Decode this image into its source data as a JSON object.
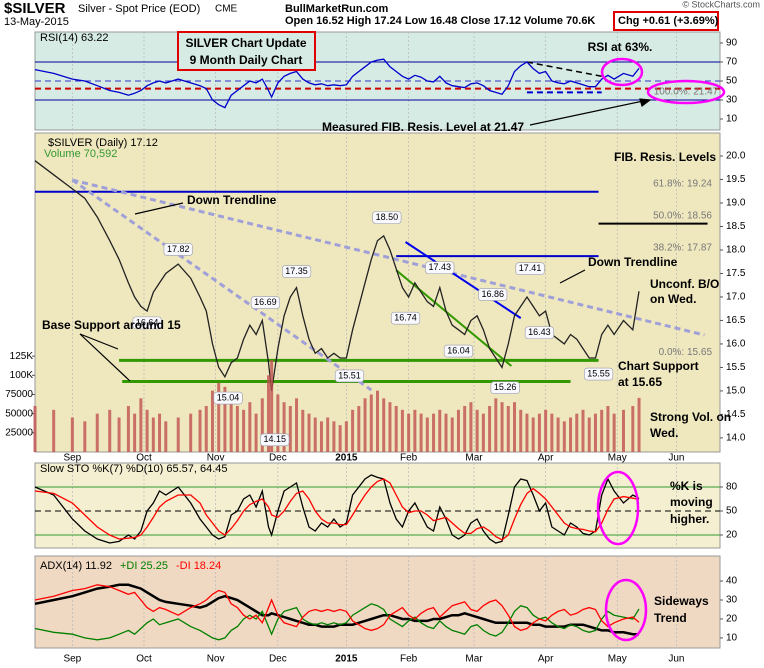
{
  "chart_data": {
    "type": "line",
    "title": "$SILVER",
    "subtitle": "Silver - Spot Price (EOD)",
    "exchange": "CME",
    "date": "13-May-2015",
    "watermark": "BullMarketRun.com",
    "source": "© StockCharts.com",
    "quote": "Open 16.52  High 17.24  Low 16.48  Close 17.12  Volume 70.6K",
    "change": "Chg +0.61 (+3.69%)",
    "xlim": [
      0,
      220
    ],
    "xticks": [
      {
        "value": 12,
        "label": "Sep"
      },
      {
        "value": 35,
        "label": "Oct"
      },
      {
        "value": 58,
        "label": "Nov"
      },
      {
        "value": 78,
        "label": "Dec"
      },
      {
        "value": 100,
        "label": "2015"
      },
      {
        "value": 120,
        "label": "Feb"
      },
      {
        "value": 141,
        "label": "Mar"
      },
      {
        "value": 164,
        "label": "Apr"
      },
      {
        "value": 187,
        "label": "May"
      },
      {
        "value": 206,
        "label": "Jun"
      }
    ],
    "x": [
      0,
      6,
      12,
      16,
      20,
      24,
      27,
      30,
      32,
      34,
      36,
      38,
      40,
      42,
      46,
      50,
      53,
      55,
      57,
      59,
      61,
      63,
      65,
      67,
      69,
      71,
      73,
      75,
      76,
      78,
      80,
      82,
      84,
      86,
      88,
      90,
      92,
      94,
      96,
      98,
      100,
      102,
      104,
      106,
      108,
      110,
      112,
      114,
      116,
      118,
      120,
      122,
      124,
      126,
      128,
      130,
      132,
      134,
      136,
      138,
      140,
      142,
      144,
      146,
      148,
      150,
      152,
      154,
      156,
      158,
      160,
      162,
      164,
      166,
      168,
      170,
      172,
      174,
      176,
      178,
      180,
      182,
      184,
      186,
      189,
      192,
      194
    ],
    "panels": [
      {
        "id": "rsi",
        "ylim": [
          -1.6,
          101.6
        ],
        "yticks": [
          10,
          30,
          50,
          70,
          90
        ],
        "hlines": [
          {
            "value": 70,
            "color": "#000099"
          },
          {
            "value": 30,
            "color": "#000099"
          },
          {
            "value": 50,
            "color": "#3333cc",
            "dash": true
          },
          {
            "value": 42,
            "color": "#cc0000",
            "dash": true,
            "width": 2
          },
          {
            "value": 38,
            "from": 158,
            "to": 182,
            "color": "#0000cc",
            "dash": true,
            "width": 2
          }
        ],
        "segments": [
          {
            "x": [
              158,
              182
            ],
            "y": [
              70,
              55
            ],
            "color": "#000000",
            "dash": true
          }
        ]
      },
      {
        "id": "price",
        "ylim": [
          13.7,
          20.49
        ],
        "yticks": [
          {
            "value": 14,
            "label": "14.0"
          },
          14.5,
          {
            "value": 15,
            "label": "15.0"
          },
          15.5,
          {
            "value": 16,
            "label": "16.0"
          },
          16.5,
          {
            "value": 17,
            "label": "17.0"
          },
          17.5,
          {
            "value": 18,
            "label": "18.0"
          },
          18.5,
          {
            "value": 19,
            "label": "19.0"
          },
          19.5,
          {
            "value": 20,
            "label": "20.0"
          }
        ],
        "hlines": [
          {
            "value": 19.24,
            "from": 0,
            "to": 181,
            "color": "#0000cc",
            "width": 2,
            "label": "61.8%: 19.24"
          },
          {
            "value": 18.56,
            "from": 181,
            "to": 216,
            "color": "#000000",
            "width": 2,
            "label": "50.0%: 18.56"
          },
          {
            "value": 17.87,
            "from": 116,
            "to": 181,
            "color": "#0000cc",
            "width": 2,
            "label": "38.2%: 17.87"
          },
          {
            "value": 15.65,
            "from": 27,
            "to": 181,
            "color": "#339900",
            "width": 3,
            "label": "0.0%: 15.65"
          },
          {
            "value": 15.2,
            "from": 28,
            "to": 172,
            "color": "#339900",
            "width": 3
          }
        ],
        "segments": [
          {
            "x": [
              12,
              215
            ],
            "y": [
              19.49,
              16.19
            ],
            "color": "#a0a0d8",
            "dash": true,
            "width": 3
          },
          {
            "x": [
              12,
              108
            ],
            "y": [
              19.49,
              15.02
            ],
            "color": "#a0a0d8",
            "dash": true,
            "width": 3
          },
          {
            "x": [
              119,
              156
            ],
            "y": [
              18.17,
              16.55
            ],
            "color": "#0000ee",
            "width": 2
          },
          {
            "x": [
              116,
              153
            ],
            "y": [
              17.57,
              15.53
            ],
            "color": "#339900",
            "width": 2
          }
        ]
      },
      {
        "id": "volume",
        "ylim": [
          0,
          416000
        ],
        "yticks": [
          25000,
          50000,
          75000,
          {
            "value": 100000,
            "label": "100K"
          },
          {
            "value": 125000,
            "label": "125K"
          }
        ]
      },
      {
        "id": "sto",
        "title": "Slow STO %K(7) %D(10) 65.57, 64.45",
        "ylim": [
          3.75,
          110
        ],
        "yticks": [
          20,
          50,
          80
        ],
        "hlines": [
          {
            "value": 80,
            "color": "#339933"
          },
          {
            "value": 20,
            "color": "#339933"
          },
          {
            "value": 50,
            "color": "#000000",
            "dash": true
          }
        ]
      },
      {
        "id": "adx",
        "ylim": [
          4.7,
          53.2
        ],
        "yticks": [
          10,
          20,
          30,
          40
        ]
      }
    ],
    "series": [
      {
        "name": "RSI(14) 63.22",
        "panel": "rsi",
        "color": "#0000cc",
        "values": [
          62,
          58,
          52,
          50,
          45,
          40,
          38,
          35,
          37,
          40,
          45,
          48,
          50,
          48,
          52,
          48,
          45,
          42,
          30,
          25,
          22,
          35,
          40,
          45,
          50,
          48,
          52,
          40,
          33,
          48,
          55,
          58,
          60,
          52,
          48,
          46,
          47,
          45,
          46,
          45,
          46,
          55,
          60,
          65,
          70,
          72,
          73,
          65,
          60,
          55,
          52,
          56,
          54,
          50,
          49,
          55,
          48,
          45,
          44,
          43,
          47,
          48,
          45,
          40,
          38,
          36,
          45,
          60,
          66,
          70,
          63,
          58,
          60,
          50,
          48,
          47,
          50,
          48,
          46,
          44,
          44,
          52,
          56,
          52,
          58,
          55,
          63.22
        ]
      },
      {
        "name": "$SILVER (Daily) 17.12",
        "panel": "price",
        "color": "#222222",
        "values": [
          19.9,
          19.6,
          19.3,
          19.1,
          18.7,
          18.2,
          17.8,
          17.3,
          17.0,
          16.8,
          16.7,
          17.1,
          17.3,
          17.5,
          17.7,
          17.4,
          17.0,
          16.7,
          16.0,
          15.5,
          15.3,
          15.6,
          15.7,
          16.1,
          16.4,
          16.2,
          16.5,
          15.6,
          15.0,
          15.9,
          16.6,
          17.0,
          17.2,
          16.6,
          16.1,
          15.8,
          15.9,
          15.7,
          15.8,
          15.7,
          15.7,
          16.3,
          16.8,
          17.3,
          17.8,
          18.2,
          18.3,
          18.0,
          17.6,
          17.2,
          17.0,
          17.3,
          17.1,
          16.9,
          16.8,
          17.2,
          16.7,
          16.4,
          16.3,
          16.2,
          16.5,
          16.6,
          16.3,
          15.9,
          15.7,
          15.5,
          16.0,
          16.6,
          16.8,
          17.0,
          16.8,
          16.6,
          16.7,
          16.2,
          16.1,
          16.0,
          16.2,
          16.1,
          15.9,
          15.7,
          15.7,
          16.2,
          16.4,
          16.2,
          16.5,
          16.3,
          17.12
        ]
      },
      {
        "name": "Volume 70,592",
        "panel": "volume",
        "kind": "bar",
        "color": "#c05050",
        "values": [
          60000,
          55000,
          45000,
          40000,
          50000,
          55000,
          45000,
          60000,
          50000,
          70000,
          55000,
          45000,
          50000,
          40000,
          45000,
          50000,
          55000,
          60000,
          80000,
          90000,
          85000,
          70000,
          60000,
          55000,
          65000,
          50000,
          70000,
          100000,
          120000,
          75000,
          65000,
          60000,
          70000,
          55000,
          50000,
          45000,
          40000,
          45000,
          40000,
          35000,
          40000,
          55000,
          60000,
          70000,
          75000,
          80000,
          70000,
          65000,
          60000,
          55000,
          50000,
          55000,
          50000,
          45000,
          50000,
          55000,
          50000,
          45000,
          55000,
          60000,
          65000,
          55000,
          50000,
          60000,
          70000,
          65000,
          60000,
          65000,
          55000,
          50000,
          45000,
          50000,
          55000,
          50000,
          45000,
          40000,
          45000,
          50000,
          55000,
          45000,
          50000,
          55000,
          60000,
          50000,
          55000,
          60000,
          70592
        ]
      },
      {
        "panel": "sto",
        "color": "#000000",
        "values": [
          80,
          70,
          40,
          25,
          15,
          10,
          12,
          20,
          15,
          25,
          50,
          60,
          75,
          70,
          80,
          60,
          40,
          30,
          20,
          15,
          18,
          45,
          50,
          65,
          70,
          55,
          75,
          30,
          20,
          50,
          75,
          80,
          85,
          55,
          30,
          25,
          35,
          30,
          40,
          30,
          35,
          70,
          80,
          90,
          95,
          92,
          90,
          60,
          40,
          30,
          50,
          60,
          45,
          30,
          25,
          55,
          40,
          20,
          15,
          20,
          35,
          40,
          25,
          15,
          10,
          12,
          45,
          80,
          90,
          88,
          70,
          50,
          60,
          30,
          25,
          20,
          35,
          30,
          22,
          20,
          25,
          70,
          90,
          75,
          60,
          70,
          65.57
        ]
      },
      {
        "panel": "sto",
        "color": "#ff0000",
        "values": [
          75,
          72,
          60,
          45,
          30,
          20,
          15,
          16,
          17,
          20,
          30,
          42,
          55,
          62,
          70,
          70,
          60,
          45,
          35,
          25,
          20,
          28,
          38,
          50,
          58,
          62,
          65,
          55,
          45,
          42,
          50,
          62,
          72,
          75,
          65,
          50,
          40,
          35,
          35,
          33,
          33,
          45,
          58,
          70,
          80,
          87,
          90,
          85,
          70,
          55,
          48,
          50,
          50,
          45,
          38,
          40,
          42,
          35,
          28,
          22,
          22,
          28,
          30,
          25,
          18,
          14,
          20,
          40,
          58,
          72,
          78,
          72,
          65,
          55,
          45,
          35,
          30,
          28,
          27,
          25,
          24,
          35,
          52,
          65,
          68,
          66,
          64.45
        ]
      },
      {
        "name": "ADX(14) 11.92",
        "panel": "adx",
        "color": "#000000",
        "width": 2.5,
        "values": [
          28,
          30,
          32,
          34,
          36,
          37,
          38,
          38,
          37,
          36,
          34,
          32,
          30,
          29,
          28,
          27,
          26,
          27,
          29,
          31,
          32,
          31,
          30,
          28,
          26,
          24,
          22,
          22,
          23,
          22,
          21,
          20,
          19,
          18,
          17,
          17,
          16,
          16,
          16,
          17,
          17,
          17,
          18,
          19,
          20,
          21,
          22,
          22,
          21,
          20,
          20,
          19,
          19,
          19,
          20,
          20,
          21,
          22,
          22,
          23,
          22,
          21,
          20,
          19,
          18,
          18,
          18,
          18,
          18,
          18,
          17,
          17,
          16,
          16,
          16,
          16,
          17,
          17,
          17,
          16,
          15,
          14,
          14,
          13,
          13,
          12,
          11.92
        ]
      },
      {
        "name": "+DI 25.25",
        "panel": "adx",
        "color": "#008000",
        "values": [
          15,
          13,
          12,
          10,
          9,
          10,
          12,
          14,
          12,
          15,
          18,
          20,
          17,
          18,
          20,
          16,
          14,
          12,
          10,
          9,
          10,
          14,
          16,
          20,
          22,
          20,
          24,
          16,
          12,
          20,
          24,
          25,
          26,
          20,
          18,
          17,
          18,
          17,
          18,
          17,
          18,
          22,
          24,
          26,
          28,
          27,
          25,
          20,
          18,
          16,
          19,
          21,
          18,
          16,
          15,
          19,
          16,
          14,
          13,
          12,
          16,
          17,
          14,
          12,
          11,
          13,
          18,
          24,
          27,
          26,
          22,
          20,
          21,
          18,
          16,
          15,
          17,
          16,
          14,
          13,
          14,
          20,
          24,
          22,
          21,
          20,
          25.25
        ]
      },
      {
        "name": "-DI 18.24",
        "panel": "adx",
        "color": "#ff0000",
        "values": [
          30,
          32,
          35,
          36,
          38,
          37,
          35,
          33,
          34,
          30,
          26,
          24,
          26,
          25,
          22,
          26,
          28,
          30,
          33,
          35,
          34,
          28,
          26,
          22,
          20,
          22,
          18,
          26,
          30,
          22,
          18,
          17,
          16,
          21,
          24,
          25,
          24,
          25,
          24,
          25,
          24,
          19,
          17,
          15,
          14,
          15,
          17,
          22,
          24,
          26,
          22,
          20,
          23,
          25,
          26,
          21,
          24,
          27,
          28,
          29,
          25,
          24,
          27,
          29,
          30,
          27,
          22,
          16,
          14,
          15,
          18,
          20,
          19,
          22,
          24,
          25,
          22,
          23,
          25,
          26,
          25,
          19,
          16,
          18,
          20,
          21,
          18.24
        ]
      }
    ],
    "price_labels": [
      {
        "x": 46,
        "value": 17.82,
        "label": "17.82"
      },
      {
        "x": 36,
        "value": 16.64,
        "label": "16.64"
      },
      {
        "x": 62,
        "value": 15.04,
        "label": "15.04"
      },
      {
        "x": 74,
        "value": 16.69,
        "label": "16.69"
      },
      {
        "x": 77,
        "value": 14.15,
        "label": "14.15"
      },
      {
        "x": 84,
        "value": 17.35,
        "label": "17.35"
      },
      {
        "x": 101,
        "value": 15.51,
        "label": "15.51"
      },
      {
        "x": 113,
        "value": 18.5,
        "label": "18.50"
      },
      {
        "x": 130,
        "value": 17.43,
        "label": "17.43"
      },
      {
        "x": 119,
        "value": 16.74,
        "label": "16.74"
      },
      {
        "x": 147,
        "value": 16.86,
        "label": "16.86"
      },
      {
        "x": 136,
        "value": 16.04,
        "label": "16.04"
      },
      {
        "x": 151,
        "value": 15.26,
        "label": "15.26"
      },
      {
        "x": 159,
        "value": 17.41,
        "label": "17.41"
      },
      {
        "x": 162,
        "value": 16.43,
        "label": "16.43"
      },
      {
        "x": 181,
        "value": 15.55,
        "label": "15.55"
      }
    ],
    "annotations": [
      "SILVER Chart Update",
      "9 Month Daily Chart",
      "RSI at 63%.",
      "100.0%: 21.47",
      "Measured FIB. Resis. Level at 21.47",
      "FIB. Resis. Levels",
      "Down Trendline",
      "Down Trendline",
      "Base Support around 15",
      "Unconf. B/O",
      "on Wed.",
      "Chart Support",
      "at 15.65",
      "Strong Vol. on",
      "Wed.",
      "%K is",
      "moving",
      "higher.",
      "Sideways",
      "Trend"
    ]
  }
}
